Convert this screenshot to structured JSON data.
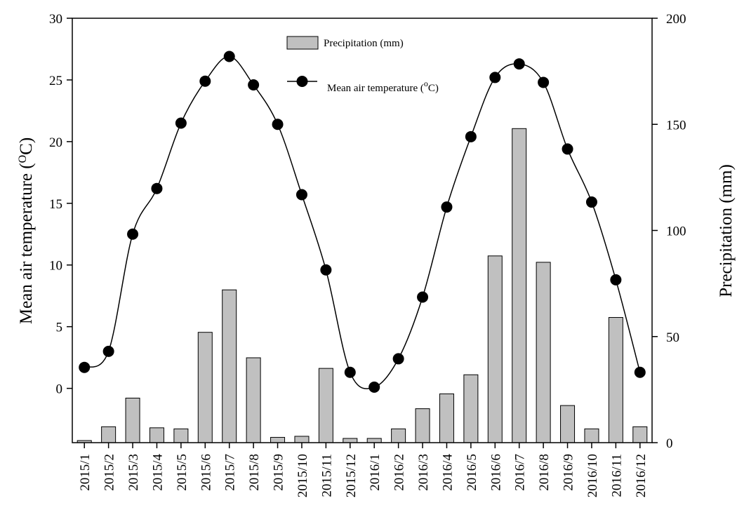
{
  "chart_data": {
    "type": "bar",
    "categories": [
      "2015/1",
      "2015/2",
      "2015/3",
      "2015/4",
      "2015/5",
      "2015/6",
      "2015/7",
      "2015/8",
      "2015/9",
      "2015/10",
      "2015/11",
      "2015/12",
      "2016/1",
      "2016/2",
      "2016/3",
      "2016/4",
      "2016/5",
      "2016/6",
      "2016/7",
      "2016/8",
      "2016/9",
      "2016/10",
      "2016/11",
      "2016/12"
    ],
    "left_axis": {
      "title_main": "Mean air temperature (",
      "title_sup": "O",
      "title_end": "C)",
      "ylim": [
        -4.4,
        30
      ],
      "ticks": [
        0,
        5,
        10,
        15,
        20,
        25,
        30
      ],
      "tick_labels": [
        "0",
        "5",
        "10",
        "15",
        "20",
        "25",
        "30"
      ]
    },
    "right_axis": {
      "title": "Precipitation (mm)",
      "ylim": [
        0,
        200
      ],
      "ticks": [
        0,
        50,
        100,
        150,
        200
      ],
      "tick_labels": [
        "0",
        "50",
        "100",
        "150",
        "200"
      ]
    },
    "series": [
      {
        "name": "Precipitation (mm)",
        "type": "bar",
        "axis": "right",
        "color": "#c0c0c0",
        "values": [
          1,
          7.5,
          21,
          7,
          6.5,
          52,
          72,
          40,
          2.5,
          3,
          35,
          2,
          2,
          6.5,
          16,
          23,
          32,
          88,
          148,
          85,
          17.5,
          6.5,
          59,
          7.5
        ]
      },
      {
        "name": "Mean air temperature",
        "legend_main": "Mean air temperature (",
        "legend_sup": "o",
        "legend_end": "C)",
        "type": "line",
        "axis": "left",
        "color": "#000000",
        "values": [
          1.7,
          3.0,
          12.5,
          16.2,
          21.5,
          24.9,
          26.9,
          24.6,
          21.4,
          15.7,
          9.6,
          1.3,
          0.1,
          2.4,
          7.4,
          14.7,
          20.4,
          25.2,
          26.3,
          24.8,
          19.4,
          15.1,
          8.8,
          1.3
        ]
      }
    ],
    "legend": {
      "placement": "top-center"
    }
  }
}
